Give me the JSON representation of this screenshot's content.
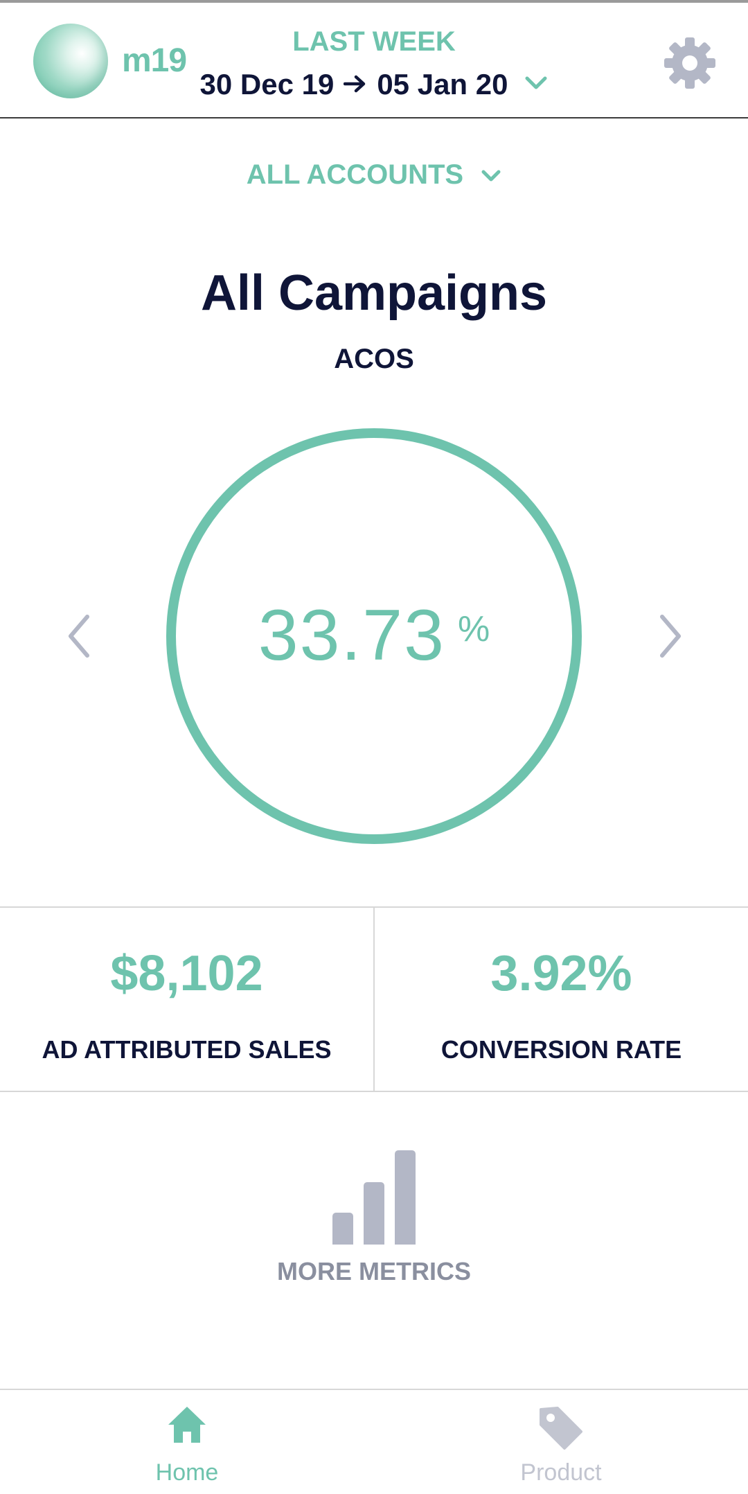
{
  "header": {
    "brand": "m19",
    "period": "LAST WEEK",
    "date_start": "30 Dec 19",
    "date_end": "05 Jan 20",
    "arrow_icon": "arrow-right-icon",
    "dropdown_icon": "chevron-down-icon",
    "settings_icon": "gear-icon"
  },
  "account_selector": {
    "label": "ALL ACCOUNTS",
    "icon": "chevron-down-icon"
  },
  "main": {
    "title": "All Campaigns",
    "metric_name": "ACOS",
    "metric_value": "33.73",
    "metric_unit": "%",
    "prev_icon": "chevron-left-icon",
    "next_icon": "chevron-right-icon"
  },
  "stats": [
    {
      "value": "$8,102",
      "label": "AD ATTRIBUTED SALES"
    },
    {
      "value": "3.92%",
      "label": "CONVERSION RATE"
    }
  ],
  "more_metrics": {
    "label": "MORE METRICS",
    "icon": "bar-chart-icon"
  },
  "bottom_nav": {
    "items": [
      {
        "label": "Home",
        "icon": "home-icon",
        "active": true
      },
      {
        "label": "Product",
        "icon": "tag-icon",
        "active": false
      }
    ]
  },
  "colors": {
    "accent": "#6ec3ad",
    "text": "#0f1538",
    "muted": "#b3b7c6"
  }
}
